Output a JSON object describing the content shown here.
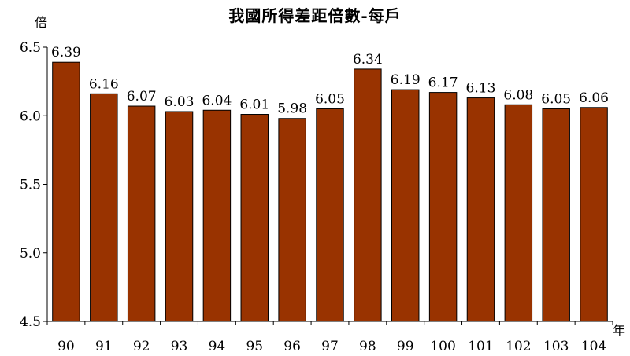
{
  "chart_data": {
    "type": "bar",
    "title": "我國所得差距倍數-每戶",
    "ylabel": "倍",
    "xlabel": "年",
    "categories": [
      "90",
      "91",
      "92",
      "93",
      "94",
      "95",
      "96",
      "97",
      "98",
      "99",
      "100",
      "101",
      "102",
      "103",
      "104"
    ],
    "values": [
      6.39,
      6.16,
      6.07,
      6.03,
      6.04,
      6.01,
      5.98,
      6.05,
      6.34,
      6.19,
      6.17,
      6.13,
      6.08,
      6.05,
      6.06
    ],
    "value_labels": [
      "6.39",
      "6.16",
      "6.07",
      "6.03",
      "6.04",
      "6.01",
      "5.98",
      "6.05",
      "6.34",
      "6.19",
      "6.17",
      "6.13",
      "6.08",
      "6.05",
      "6.06"
    ],
    "ylim": [
      4.5,
      6.5
    ],
    "yticks": [
      "4.5",
      "5.0",
      "5.5",
      "6.0",
      "6.5"
    ],
    "grid": false,
    "colors": {
      "bar_fill": "#993300",
      "bar_stroke": "#000000",
      "axis": "#000000"
    }
  }
}
